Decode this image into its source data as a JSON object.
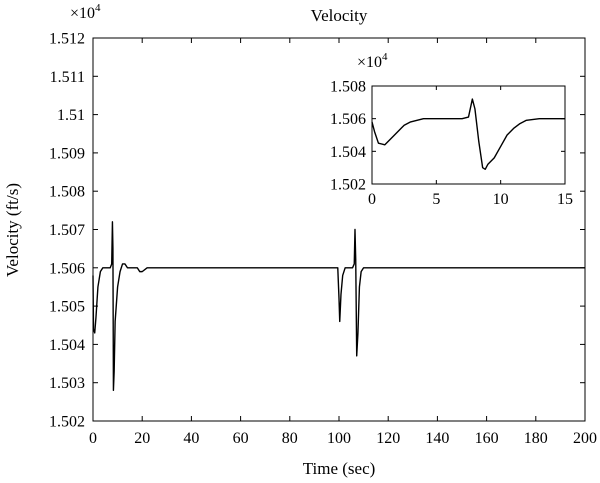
{
  "chart_data": [
    {
      "id": "main",
      "type": "line",
      "title": "Velocity",
      "xlabel": "Time (sec)",
      "ylabel": "Velocity (ft/s)",
      "y_multiplier": "×10",
      "y_exponent": "4",
      "xlim": [
        0,
        200
      ],
      "ylim": [
        1.502,
        1.512
      ],
      "xticks": [
        0,
        20,
        40,
        60,
        80,
        100,
        120,
        140,
        160,
        180,
        200
      ],
      "xtick_labels": [
        "0",
        "20",
        "40",
        "60",
        "80",
        "100",
        "120",
        "140",
        "160",
        "180",
        "200"
      ],
      "yticks": [
        1.502,
        1.503,
        1.504,
        1.505,
        1.506,
        1.507,
        1.508,
        1.509,
        1.51,
        1.511,
        1.512
      ],
      "ytick_labels": [
        "1.502",
        "1.503",
        "1.504",
        "1.505",
        "1.506",
        "1.507",
        "1.508",
        "1.509",
        "1.51",
        "1.511",
        "1.512"
      ],
      "grid": false,
      "series": [
        {
          "x": [
            0,
            0.2,
            0.7,
            1.2,
            2,
            3,
            4,
            5,
            6,
            7,
            7.6,
            7.9,
            8.1,
            8.3,
            8.6,
            9,
            10,
            11,
            12,
            13,
            14,
            15,
            16,
            17,
            18,
            19,
            20,
            22,
            25,
            30,
            40,
            60,
            80,
            99.5,
            100,
            100.3,
            100.8,
            101.5,
            102.5,
            103.5,
            104.5,
            105.5,
            106.2,
            106.5,
            106.8,
            107.2,
            107.7,
            108.3,
            109,
            110,
            112,
            115,
            120,
            140,
            160,
            180,
            200
          ],
          "y": [
            1.5058,
            1.5044,
            1.5043,
            1.5047,
            1.5055,
            1.5059,
            1.506,
            1.506,
            1.506,
            1.506,
            1.5061,
            1.5072,
            1.5065,
            1.5028,
            1.5033,
            1.5046,
            1.5055,
            1.5059,
            1.5061,
            1.5061,
            1.506,
            1.506,
            1.506,
            1.506,
            1.506,
            1.5059,
            1.5059,
            1.506,
            1.506,
            1.506,
            1.506,
            1.506,
            1.506,
            1.506,
            1.5052,
            1.5046,
            1.5053,
            1.5058,
            1.506,
            1.506,
            1.506,
            1.506,
            1.5061,
            1.507,
            1.5062,
            1.5037,
            1.5043,
            1.5055,
            1.5059,
            1.506,
            1.506,
            1.506,
            1.506,
            1.506,
            1.506,
            1.506,
            1.506
          ]
        }
      ]
    },
    {
      "id": "inset",
      "type": "line",
      "title": "",
      "y_multiplier": "×10",
      "y_exponent": "4",
      "xlim": [
        0,
        15
      ],
      "ylim": [
        1.502,
        1.508
      ],
      "xticks": [
        0,
        5,
        10,
        15
      ],
      "xtick_labels": [
        "0",
        "5",
        "10",
        "15"
      ],
      "yticks": [
        1.502,
        1.504,
        1.506,
        1.508
      ],
      "ytick_labels": [
        "1.502",
        "1.504",
        "1.506",
        "1.508"
      ],
      "grid": false,
      "series": [
        {
          "x": [
            0,
            0.2,
            0.5,
            1,
            1.5,
            2,
            2.5,
            3,
            3.5,
            4,
            5,
            6,
            7,
            7.5,
            7.8,
            8,
            8.3,
            8.6,
            8.8,
            9,
            9.5,
            10,
            10.5,
            11,
            11.5,
            12,
            13,
            14,
            15
          ],
          "y": [
            1.5058,
            1.5052,
            1.5045,
            1.5044,
            1.5048,
            1.5052,
            1.5056,
            1.5058,
            1.5059,
            1.506,
            1.506,
            1.506,
            1.506,
            1.5061,
            1.5072,
            1.5066,
            1.5046,
            1.503,
            1.5029,
            1.5032,
            1.5036,
            1.5043,
            1.505,
            1.5054,
            1.5057,
            1.5059,
            1.506,
            1.506,
            1.506
          ]
        }
      ]
    }
  ]
}
